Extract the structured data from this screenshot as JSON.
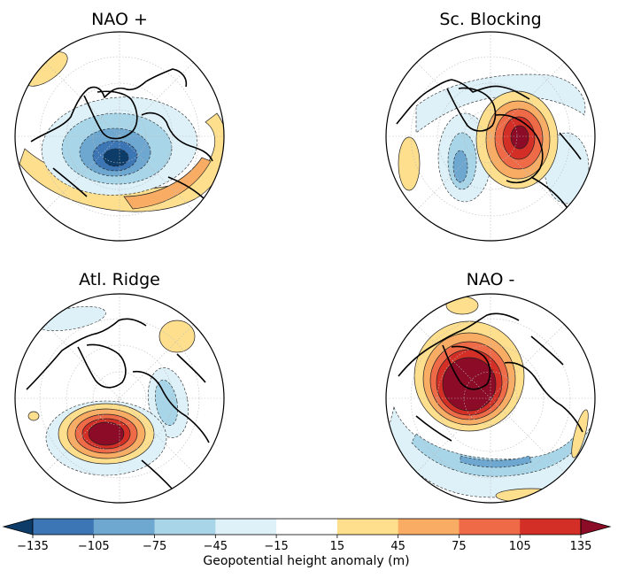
{
  "figure": {
    "panels": [
      {
        "title": "NAO +",
        "pattern": "nao_plus"
      },
      {
        "title": "Sc. Blocking",
        "pattern": "sc_blocking"
      },
      {
        "title": "Atl. Ridge",
        "pattern": "atl_ridge"
      },
      {
        "title": "NAO -",
        "pattern": "nao_minus"
      }
    ],
    "colorbar": {
      "label": "Geopotential height anomaly (m)",
      "ticks": [
        "−135",
        "−105",
        "−75",
        "−45",
        "−15",
        "15",
        "45",
        "75",
        "105",
        "135"
      ],
      "tick_values": [
        -135,
        -105,
        -75,
        -45,
        -15,
        15,
        45,
        75,
        105,
        135
      ],
      "colors": [
        "#3c76b4",
        "#6ea7d0",
        "#a8d5e7",
        "#def1f8",
        "#ffffff",
        "#fddf8e",
        "#f9ac63",
        "#ef6a46",
        "#d32f27"
      ],
      "extend_low_color": "#0e3c68",
      "extend_high_color": "#8c0b26"
    }
  }
}
